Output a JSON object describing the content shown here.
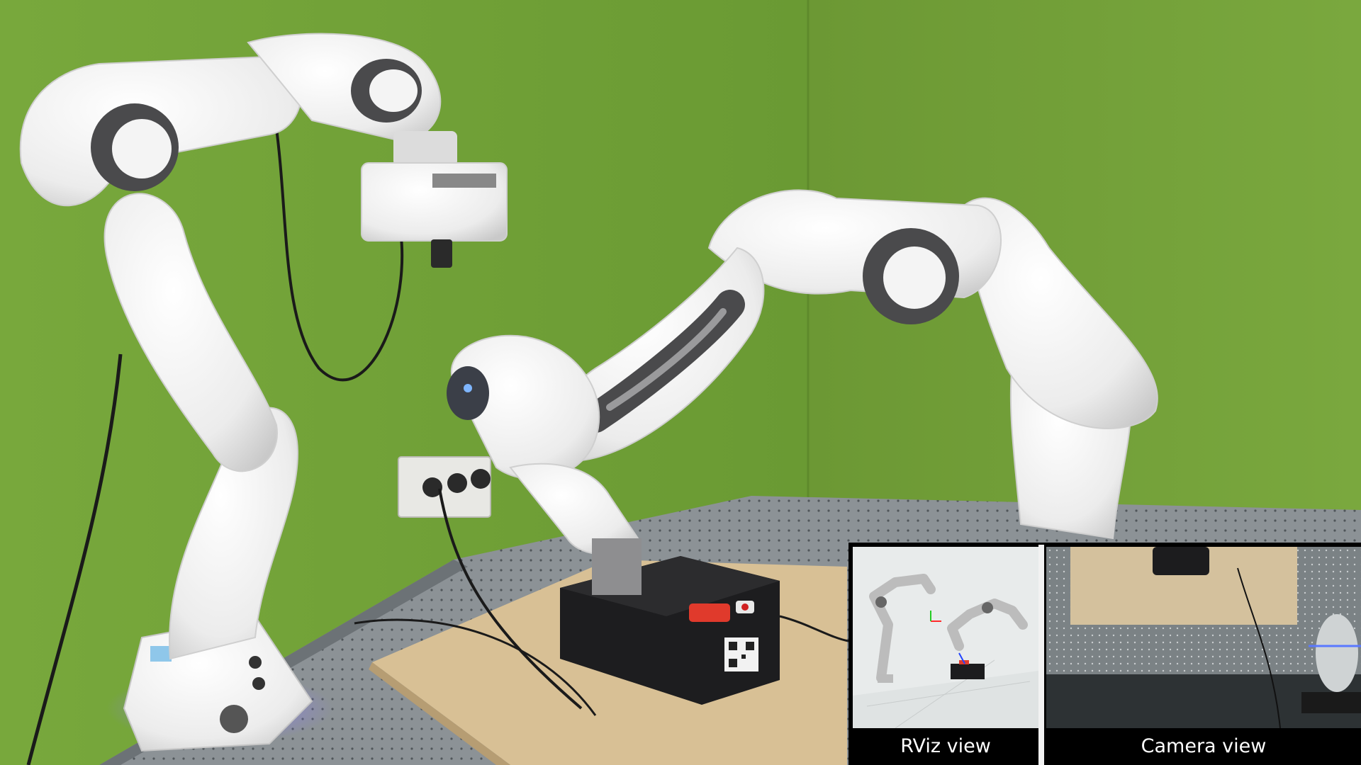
{
  "scene": {
    "wall_color": "#6f9a35",
    "robot_color": "#f2f2f2",
    "joint_color": "#4a4a4c",
    "table_color": "#8f9498",
    "board_color": "#d9c29a",
    "box_color": "#1c1c1e"
  },
  "inset": {
    "rviz": {
      "label": "RViz view"
    },
    "camera": {
      "label": "Camera view"
    }
  }
}
